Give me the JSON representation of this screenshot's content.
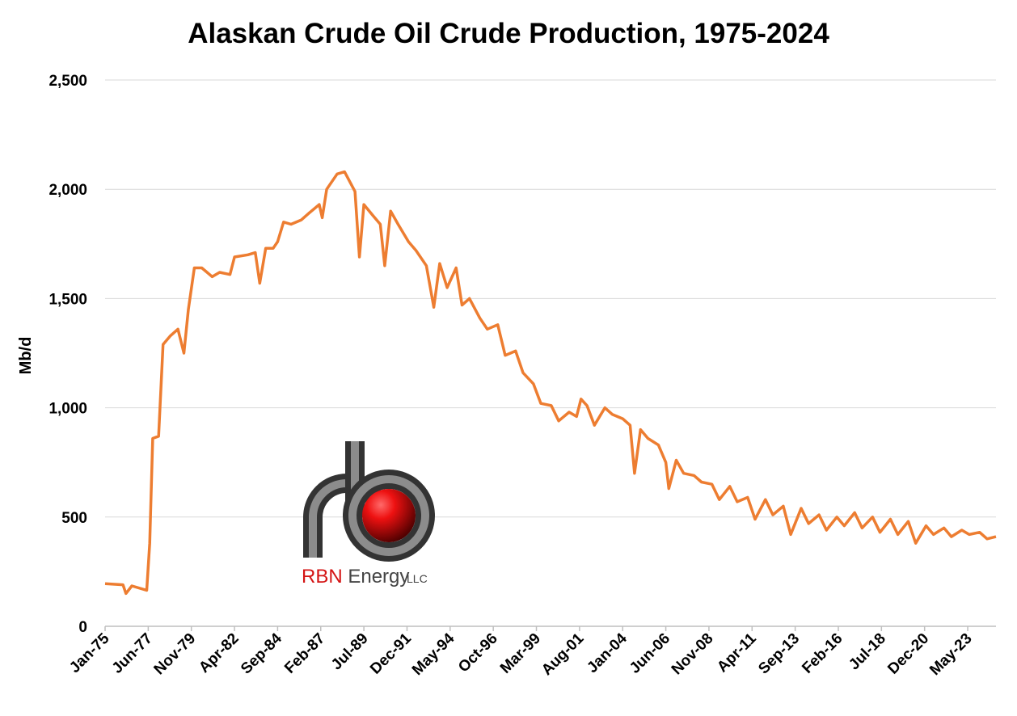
{
  "chart_data": {
    "type": "line",
    "title": "Alaskan Crude Oil Crude Production, 1975-2024",
    "ylabel": "Mb/d",
    "xlabel": "",
    "ylim": [
      0,
      2500
    ],
    "yticks": [
      0,
      500,
      1000,
      1500,
      2000,
      2500
    ],
    "ytick_labels": [
      "0",
      "500",
      "1,000",
      "1,500",
      "2,000",
      "2,500"
    ],
    "xlim": [
      "1975-01",
      "2024-12"
    ],
    "xtick_labels": [
      "Jan-75",
      "Jun-77",
      "Nov-79",
      "Apr-82",
      "Sep-84",
      "Feb-87",
      "Jul-89",
      "Dec-91",
      "May-94",
      "Oct-96",
      "Mar-99",
      "Aug-01",
      "Jan-04",
      "Jun-06",
      "Nov-08",
      "Apr-11",
      "Sep-13",
      "Feb-16",
      "Jul-18",
      "Dec-20",
      "May-23"
    ],
    "grid": true,
    "legend": "none",
    "line_color": "#ED7D31",
    "series": [
      {
        "name": "",
        "points": [
          [
            "1975-01",
            195
          ],
          [
            "1976-01",
            190
          ],
          [
            "1976-03",
            150
          ],
          [
            "1976-07",
            185
          ],
          [
            "1977-05",
            165
          ],
          [
            "1977-07",
            380
          ],
          [
            "1977-09",
            860
          ],
          [
            "1978-01",
            870
          ],
          [
            "1978-04",
            1290
          ],
          [
            "1978-09",
            1330
          ],
          [
            "1979-02",
            1360
          ],
          [
            "1979-06",
            1250
          ],
          [
            "1979-09",
            1450
          ],
          [
            "1980-01",
            1640
          ],
          [
            "1980-06",
            1640
          ],
          [
            "1981-01",
            1600
          ],
          [
            "1981-06",
            1620
          ],
          [
            "1982-01",
            1610
          ],
          [
            "1982-04",
            1690
          ],
          [
            "1983-01",
            1700
          ],
          [
            "1983-06",
            1710
          ],
          [
            "1983-09",
            1570
          ],
          [
            "1984-01",
            1730
          ],
          [
            "1984-06",
            1730
          ],
          [
            "1984-09",
            1760
          ],
          [
            "1985-01",
            1850
          ],
          [
            "1985-06",
            1840
          ],
          [
            "1986-01",
            1860
          ],
          [
            "1986-06",
            1890
          ],
          [
            "1987-01",
            1930
          ],
          [
            "1987-03",
            1870
          ],
          [
            "1987-06",
            2000
          ],
          [
            "1988-01",
            2070
          ],
          [
            "1988-06",
            2080
          ],
          [
            "1989-01",
            1990
          ],
          [
            "1989-04",
            1690
          ],
          [
            "1989-07",
            1930
          ],
          [
            "1990-01",
            1880
          ],
          [
            "1990-06",
            1840
          ],
          [
            "1990-09",
            1650
          ],
          [
            "1991-01",
            1900
          ],
          [
            "1991-06",
            1840
          ],
          [
            "1992-01",
            1760
          ],
          [
            "1992-06",
            1720
          ],
          [
            "1993-01",
            1650
          ],
          [
            "1993-06",
            1460
          ],
          [
            "1993-10",
            1660
          ],
          [
            "1994-03",
            1550
          ],
          [
            "1994-09",
            1640
          ],
          [
            "1995-01",
            1470
          ],
          [
            "1995-06",
            1500
          ],
          [
            "1996-01",
            1410
          ],
          [
            "1996-06",
            1360
          ],
          [
            "1997-01",
            1380
          ],
          [
            "1997-06",
            1240
          ],
          [
            "1998-01",
            1260
          ],
          [
            "1998-06",
            1160
          ],
          [
            "1999-01",
            1110
          ],
          [
            "1999-06",
            1020
          ],
          [
            "2000-01",
            1010
          ],
          [
            "2000-06",
            940
          ],
          [
            "2001-01",
            980
          ],
          [
            "2001-06",
            960
          ],
          [
            "2001-09",
            1040
          ],
          [
            "2002-01",
            1010
          ],
          [
            "2002-06",
            920
          ],
          [
            "2003-01",
            1000
          ],
          [
            "2003-06",
            970
          ],
          [
            "2004-01",
            950
          ],
          [
            "2004-06",
            920
          ],
          [
            "2004-09",
            700
          ],
          [
            "2005-01",
            900
          ],
          [
            "2005-06",
            860
          ],
          [
            "2006-01",
            830
          ],
          [
            "2006-06",
            750
          ],
          [
            "2006-08",
            630
          ],
          [
            "2007-01",
            760
          ],
          [
            "2007-06",
            700
          ],
          [
            "2008-01",
            690
          ],
          [
            "2008-06",
            660
          ],
          [
            "2009-01",
            650
          ],
          [
            "2009-06",
            580
          ],
          [
            "2010-01",
            640
          ],
          [
            "2010-06",
            570
          ],
          [
            "2011-01",
            590
          ],
          [
            "2011-06",
            490
          ],
          [
            "2012-01",
            580
          ],
          [
            "2012-06",
            510
          ],
          [
            "2013-01",
            550
          ],
          [
            "2013-06",
            420
          ],
          [
            "2014-01",
            540
          ],
          [
            "2014-06",
            470
          ],
          [
            "2015-01",
            510
          ],
          [
            "2015-06",
            440
          ],
          [
            "2016-01",
            500
          ],
          [
            "2016-06",
            460
          ],
          [
            "2017-01",
            520
          ],
          [
            "2017-06",
            450
          ],
          [
            "2018-01",
            500
          ],
          [
            "2018-06",
            430
          ],
          [
            "2019-01",
            490
          ],
          [
            "2019-06",
            420
          ],
          [
            "2020-01",
            480
          ],
          [
            "2020-06",
            380
          ],
          [
            "2021-01",
            460
          ],
          [
            "2021-06",
            420
          ],
          [
            "2022-01",
            450
          ],
          [
            "2022-06",
            410
          ],
          [
            "2023-01",
            440
          ],
          [
            "2023-06",
            420
          ],
          [
            "2024-01",
            430
          ],
          [
            "2024-06",
            400
          ],
          [
            "2024-12",
            410
          ]
        ]
      }
    ]
  },
  "logo": {
    "company_name": "RBN Energy",
    "company_suffix": "LLC"
  }
}
